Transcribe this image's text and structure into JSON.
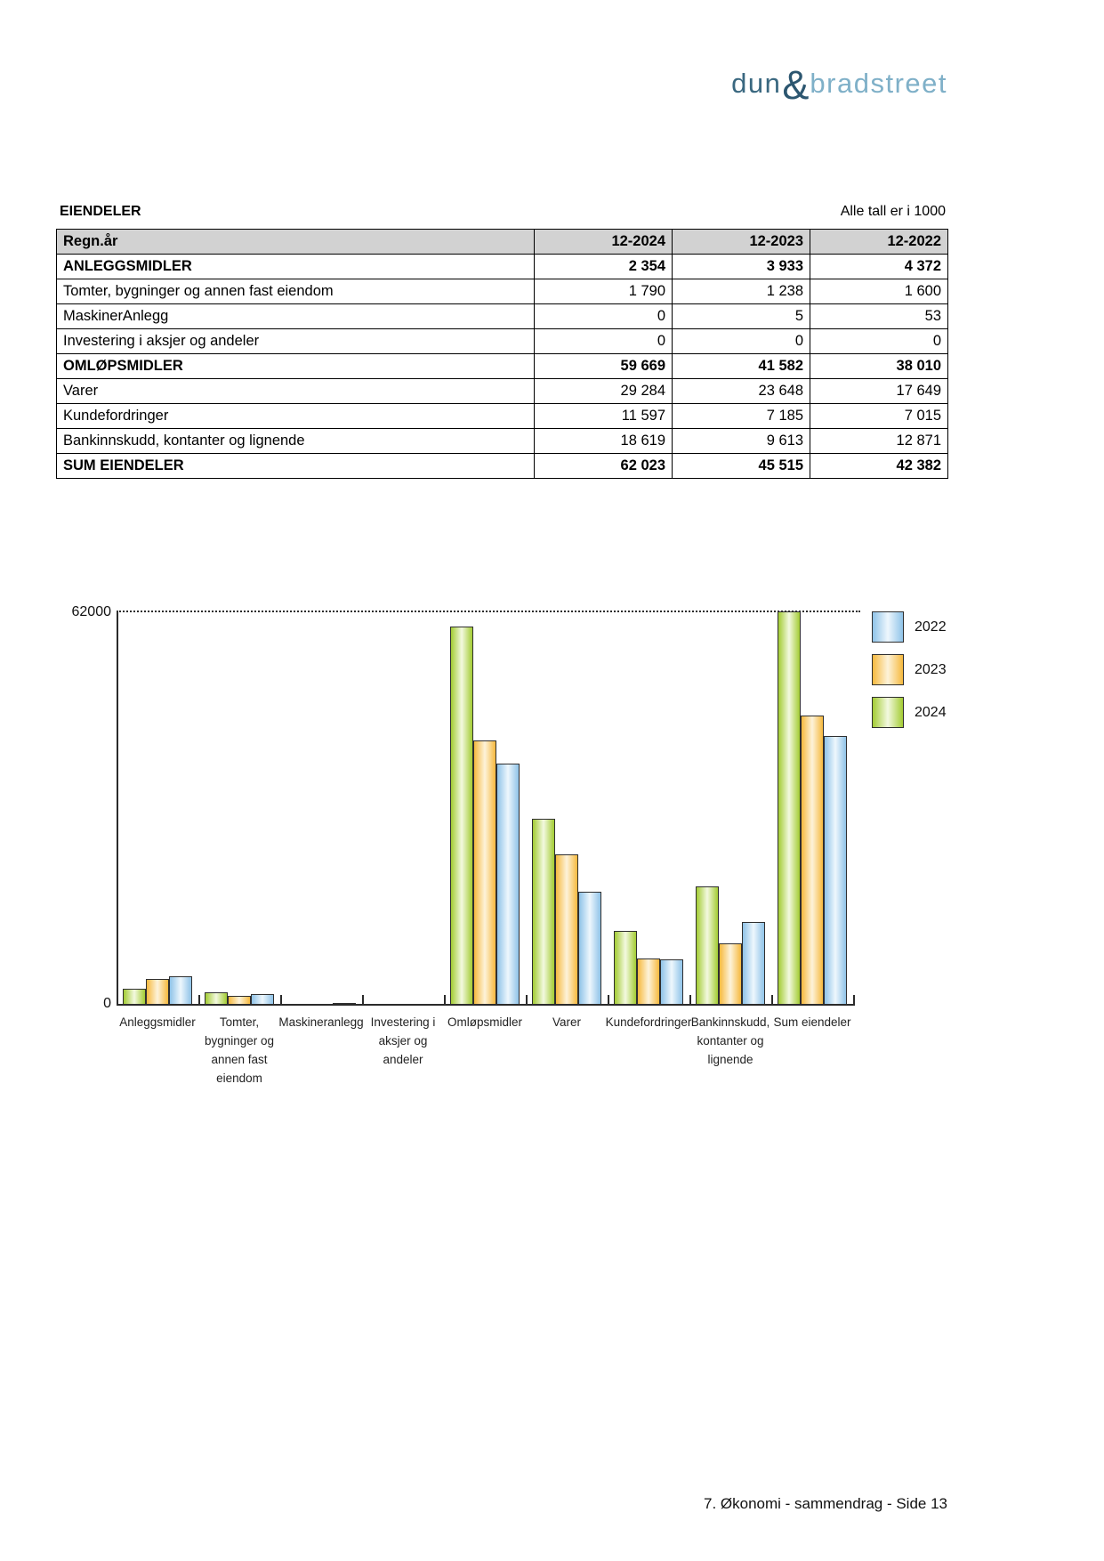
{
  "logo": {
    "dun": "dun",
    "amp": "&",
    "bradstreet": "bradstreet"
  },
  "table": {
    "title": "EIENDELER",
    "note": "Alle tall er i 1000",
    "columns": [
      "Regn.år",
      "12-2024",
      "12-2023",
      "12-2022"
    ],
    "rows": [
      {
        "label": "ANLEGGSMIDLER",
        "values": [
          "2 354",
          "3 933",
          "4 372"
        ],
        "bold": true
      },
      {
        "label": "Tomter, bygninger og annen fast eiendom",
        "values": [
          "1 790",
          "1 238",
          "1 600"
        ],
        "bold": false
      },
      {
        "label": "MaskinerAnlegg",
        "values": [
          "0",
          "5",
          "53"
        ],
        "bold": false
      },
      {
        "label": "Investering i aksjer og andeler",
        "values": [
          "0",
          "0",
          "0"
        ],
        "bold": false
      },
      {
        "label": "OMLØPSMIDLER",
        "values": [
          "59 669",
          "41 582",
          "38 010"
        ],
        "bold": true
      },
      {
        "label": "Varer",
        "values": [
          "29 284",
          "23 648",
          "17 649"
        ],
        "bold": false
      },
      {
        "label": "Kundefordringer",
        "values": [
          "11 597",
          "7 185",
          "7 015"
        ],
        "bold": false
      },
      {
        "label": "Bankinnskudd, kontanter og lignende",
        "values": [
          "18 619",
          "9 613",
          "12 871"
        ],
        "bold": false
      },
      {
        "label": "SUM EIENDELER",
        "values": [
          "62 023",
          "45 515",
          "42 382"
        ],
        "bold": true
      }
    ]
  },
  "chart_data": {
    "type": "bar",
    "title": "",
    "categories": [
      "Anleggsmidler",
      "Tomter,\nbygninger og\nannen fast\neiendom",
      "Maskineranlegg",
      "Investering i\naksjer og\nandeler",
      "Omløpsmidler",
      "Varer",
      "Kundefordringer",
      "Bankinnskudd,\nkontanter og\nlignende",
      "Sum eiendeler"
    ],
    "series": [
      {
        "name": "2024",
        "color": "#a3cc33",
        "color_light": "#f3f9e0",
        "values": [
          2354,
          1790,
          0,
          0,
          59669,
          29284,
          11597,
          18619,
          62023
        ]
      },
      {
        "name": "2023",
        "color": "#f6b93e",
        "color_light": "#fdf3da",
        "values": [
          3933,
          1238,
          5,
          0,
          41582,
          23648,
          7185,
          9613,
          45515
        ]
      },
      {
        "name": "2022",
        "color": "#8fc3e8",
        "color_light": "#eef7fd",
        "values": [
          4372,
          1600,
          53,
          0,
          38010,
          17649,
          7015,
          12871,
          42382
        ]
      }
    ],
    "bar_order": [
      "2024",
      "2023",
      "2022"
    ],
    "legend": [
      "2022",
      "2023",
      "2024"
    ],
    "legend_position": "top-right",
    "ylim": [
      0,
      62000
    ],
    "yticks": [
      "62000",
      "0"
    ],
    "gridline_value": 62000,
    "grid": "single dotted line at y-max"
  },
  "footer": {
    "text": "7. Økonomi - sammendrag - Side 13"
  }
}
